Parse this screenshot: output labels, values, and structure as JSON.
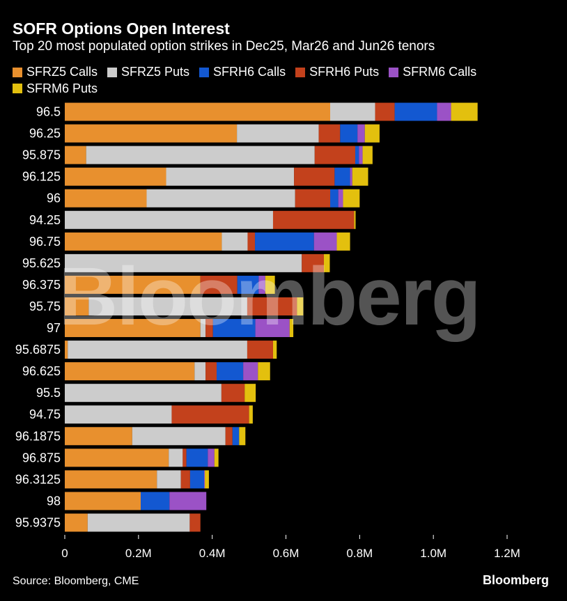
{
  "header": {
    "title": "SOFR Options Open Interest",
    "subtitle": "Top 20 most populated option strikes in Dec25, Mar26 and Jun26 tenors"
  },
  "footer": {
    "source": "Source: Bloomberg, CME",
    "brand": "Bloomberg"
  },
  "watermark": "Bloomberg",
  "chart_data": {
    "type": "bar",
    "orientation": "horizontal",
    "stacked": true,
    "title": "SOFR Options Open Interest",
    "subtitle": "Top 20 most populated option strikes in Dec25, Mar26 and Jun26 tenors",
    "legend_position": "top",
    "grid": false,
    "xlim": [
      0,
      1200000
    ],
    "x_ticks": [
      0,
      200000,
      400000,
      600000,
      800000,
      1000000,
      1200000
    ],
    "x_tick_labels": [
      "0",
      "0.2M",
      "0.4M",
      "0.6M",
      "0.8M",
      "1.0M",
      "1.2M"
    ],
    "categories": [
      "96.5",
      "96.25",
      "95.875",
      "96.125",
      "96",
      "94.25",
      "96.75",
      "95.625",
      "96.375",
      "95.75",
      "97",
      "95.6875",
      "96.625",
      "95.5",
      "94.75",
      "96.1875",
      "96.875",
      "96.3125",
      "98",
      "95.9375"
    ],
    "series": [
      {
        "name": "SFRZ5 Calls",
        "color": "#e8902e",
        "values": [
          720000,
          467000,
          58000,
          275000,
          222000,
          0,
          426000,
          0,
          368000,
          65000,
          368000,
          8000,
          352000,
          0,
          0,
          183000,
          282000,
          250000,
          206000,
          62000
        ]
      },
      {
        "name": "SFRZ5 Puts",
        "color": "#cccccc",
        "values": [
          122000,
          222000,
          620000,
          347000,
          403000,
          565000,
          70000,
          643000,
          0,
          430000,
          14000,
          487000,
          30000,
          425000,
          290000,
          253000,
          38000,
          65000,
          0,
          277000
        ]
      },
      {
        "name": "SFRH6 Puts",
        "color": "#c3411c",
        "values": [
          53000,
          58000,
          110000,
          110000,
          95000,
          220000,
          20000,
          60000,
          100000,
          135000,
          20000,
          70000,
          30000,
          63000,
          210000,
          19000,
          10000,
          25000,
          0,
          29000
        ]
      },
      {
        "name": "SFRH6 Calls",
        "color": "#1358d1",
        "values": [
          115000,
          47000,
          10000,
          42000,
          22000,
          0,
          160000,
          0,
          58000,
          0,
          115000,
          0,
          72000,
          0,
          0,
          18000,
          58000,
          38000,
          78000,
          0
        ]
      },
      {
        "name": "SFRM6 Calls",
        "color": "#9b52c6",
        "values": [
          38000,
          20000,
          10000,
          6000,
          13000,
          0,
          62000,
          0,
          18000,
          0,
          93000,
          0,
          40000,
          0,
          0,
          0,
          18000,
          2000,
          100000,
          0
        ]
      },
      {
        "name": "SFRM6 Puts",
        "color": "#e3c00e",
        "values": [
          72000,
          40000,
          27000,
          43000,
          45000,
          4000,
          36000,
          16000,
          26000,
          17000,
          10000,
          10000,
          33000,
          30000,
          10000,
          17000,
          11000,
          11000,
          0,
          0
        ]
      }
    ]
  }
}
